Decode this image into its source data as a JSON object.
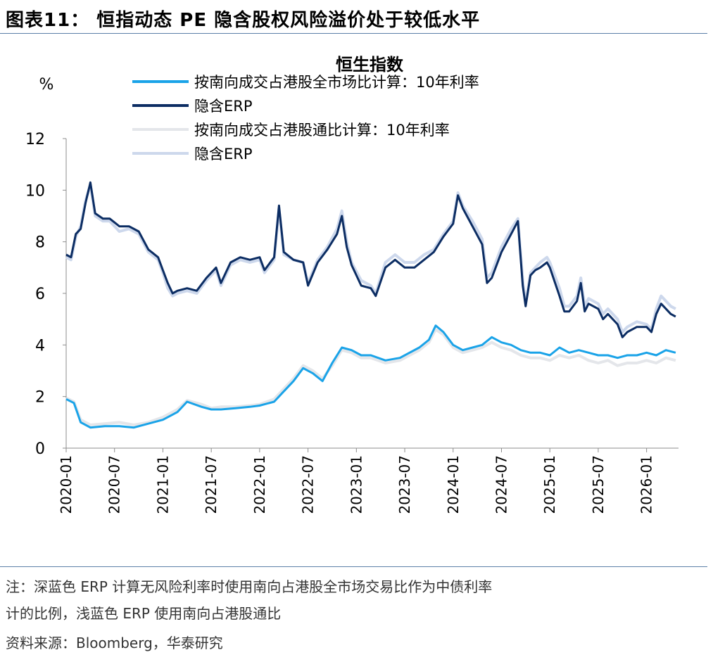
{
  "figure_title": "图表11： 恒指动态 PE 隐含股权风险溢价处于较低水平",
  "notes": {
    "line1": "注：深蓝色 ERP 计算无风险利率时使用南向占港股全市场交易比作为中债利率",
    "line2": "计的比例，浅蓝色 ERP 使用南向占港股通比",
    "source": "资料来源：Bloomberg，华泰研究"
  },
  "colors": {
    "rf_full_market": "#1aa3e8",
    "erp_full_market": "#0c2d63",
    "rf_connect": "#e4e6ea",
    "erp_connect": "#cdd8ec"
  },
  "chart_data": {
    "type": "line",
    "title": "恒生指数",
    "ylabel": "%",
    "xlabel": "",
    "ylim": [
      0,
      12
    ],
    "yticks": [
      "0",
      "2",
      "4",
      "6",
      "8",
      "10",
      "12"
    ],
    "xlim": [
      2020.0,
      2026.33
    ],
    "x_tick_labels": [
      "2020-01",
      "2020-07",
      "2021-01",
      "2021-07",
      "2022-01",
      "2022-07",
      "2023-01",
      "2023-07",
      "2024-01",
      "2024-07",
      "2025-01",
      "2025-07",
      "2026-01"
    ],
    "legend_position": "top-left",
    "series": [
      {
        "name": "按南向成交占港股通比计算：10年利率",
        "style": "light-gray",
        "points": [
          [
            2020.0,
            1.95
          ],
          [
            2020.08,
            1.8
          ],
          [
            2020.15,
            1.1
          ],
          [
            2020.25,
            0.9
          ],
          [
            2020.4,
            0.95
          ],
          [
            2020.55,
            1.0
          ],
          [
            2020.7,
            0.9
          ],
          [
            2020.85,
            1.0
          ],
          [
            2021.0,
            1.2
          ],
          [
            2021.15,
            1.5
          ],
          [
            2021.25,
            1.85
          ],
          [
            2021.4,
            1.7
          ],
          [
            2021.5,
            1.55
          ],
          [
            2021.6,
            1.6
          ],
          [
            2021.75,
            1.6
          ],
          [
            2021.9,
            1.65
          ],
          [
            2022.0,
            1.7
          ],
          [
            2022.15,
            1.9
          ],
          [
            2022.25,
            2.3
          ],
          [
            2022.35,
            2.7
          ],
          [
            2022.45,
            3.2
          ],
          [
            2022.55,
            3.0
          ],
          [
            2022.65,
            2.7
          ],
          [
            2022.75,
            3.2
          ],
          [
            2022.85,
            3.8
          ],
          [
            2022.95,
            3.7
          ],
          [
            2023.05,
            3.5
          ],
          [
            2023.15,
            3.5
          ],
          [
            2023.3,
            3.3
          ],
          [
            2023.45,
            3.4
          ],
          [
            2023.55,
            3.6
          ],
          [
            2023.65,
            3.8
          ],
          [
            2023.75,
            4.1
          ],
          [
            2023.82,
            4.6
          ],
          [
            2023.9,
            4.4
          ],
          [
            2024.0,
            3.9
          ],
          [
            2024.1,
            3.7
          ],
          [
            2024.2,
            3.8
          ],
          [
            2024.3,
            3.9
          ],
          [
            2024.4,
            4.1
          ],
          [
            2024.5,
            3.9
          ],
          [
            2024.6,
            3.8
          ],
          [
            2024.7,
            3.6
          ],
          [
            2024.8,
            3.5
          ],
          [
            2024.9,
            3.5
          ],
          [
            2025.0,
            3.4
          ],
          [
            2025.1,
            3.6
          ],
          [
            2025.2,
            3.5
          ],
          [
            2025.3,
            3.6
          ],
          [
            2025.4,
            3.4
          ],
          [
            2025.5,
            3.3
          ],
          [
            2025.6,
            3.4
          ],
          [
            2025.7,
            3.2
          ],
          [
            2025.8,
            3.3
          ],
          [
            2025.9,
            3.3
          ],
          [
            2026.0,
            3.4
          ],
          [
            2026.1,
            3.3
          ],
          [
            2026.2,
            3.5
          ],
          [
            2026.3,
            3.4
          ]
        ]
      },
      {
        "name": "按南向成交占港股全市场比计算：10年利率",
        "style": "light-blue",
        "points": [
          [
            2020.0,
            1.9
          ],
          [
            2020.08,
            1.75
          ],
          [
            2020.15,
            1.0
          ],
          [
            2020.25,
            0.8
          ],
          [
            2020.4,
            0.85
          ],
          [
            2020.55,
            0.85
          ],
          [
            2020.7,
            0.8
          ],
          [
            2020.85,
            0.95
          ],
          [
            2021.0,
            1.1
          ],
          [
            2021.15,
            1.4
          ],
          [
            2021.25,
            1.8
          ],
          [
            2021.4,
            1.6
          ],
          [
            2021.5,
            1.5
          ],
          [
            2021.6,
            1.5
          ],
          [
            2021.75,
            1.55
          ],
          [
            2021.9,
            1.6
          ],
          [
            2022.0,
            1.65
          ],
          [
            2022.15,
            1.8
          ],
          [
            2022.25,
            2.2
          ],
          [
            2022.35,
            2.6
          ],
          [
            2022.45,
            3.1
          ],
          [
            2022.55,
            2.9
          ],
          [
            2022.65,
            2.6
          ],
          [
            2022.75,
            3.3
          ],
          [
            2022.85,
            3.9
          ],
          [
            2022.95,
            3.8
          ],
          [
            2023.05,
            3.6
          ],
          [
            2023.15,
            3.6
          ],
          [
            2023.3,
            3.4
          ],
          [
            2023.45,
            3.5
          ],
          [
            2023.55,
            3.7
          ],
          [
            2023.65,
            3.9
          ],
          [
            2023.75,
            4.2
          ],
          [
            2023.82,
            4.75
          ],
          [
            2023.9,
            4.5
          ],
          [
            2024.0,
            4.0
          ],
          [
            2024.1,
            3.8
          ],
          [
            2024.2,
            3.9
          ],
          [
            2024.3,
            4.0
          ],
          [
            2024.4,
            4.3
          ],
          [
            2024.5,
            4.1
          ],
          [
            2024.6,
            4.0
          ],
          [
            2024.7,
            3.8
          ],
          [
            2024.8,
            3.7
          ],
          [
            2024.9,
            3.7
          ],
          [
            2025.0,
            3.6
          ],
          [
            2025.1,
            3.9
          ],
          [
            2025.2,
            3.7
          ],
          [
            2025.3,
            3.8
          ],
          [
            2025.4,
            3.7
          ],
          [
            2025.5,
            3.6
          ],
          [
            2025.6,
            3.6
          ],
          [
            2025.7,
            3.5
          ],
          [
            2025.8,
            3.6
          ],
          [
            2025.9,
            3.6
          ],
          [
            2026.0,
            3.7
          ],
          [
            2026.1,
            3.6
          ],
          [
            2026.2,
            3.8
          ],
          [
            2026.3,
            3.7
          ]
        ]
      },
      {
        "name": "隐含ERP",
        "legend_index": 3,
        "style": "pale-blue",
        "points": [
          [
            2020.0,
            7.4
          ],
          [
            2020.05,
            7.3
          ],
          [
            2020.1,
            8.2
          ],
          [
            2020.15,
            8.6
          ],
          [
            2020.2,
            9.6
          ],
          [
            2020.25,
            10.2
          ],
          [
            2020.3,
            9.0
          ],
          [
            2020.38,
            8.8
          ],
          [
            2020.45,
            8.8
          ],
          [
            2020.55,
            8.4
          ],
          [
            2020.65,
            8.5
          ],
          [
            2020.75,
            8.3
          ],
          [
            2020.85,
            7.6
          ],
          [
            2020.95,
            7.3
          ],
          [
            2021.0,
            6.8
          ],
          [
            2021.05,
            6.2
          ],
          [
            2021.1,
            5.9
          ],
          [
            2021.15,
            6.0
          ],
          [
            2021.25,
            6.1
          ],
          [
            2021.35,
            6.0
          ],
          [
            2021.45,
            6.5
          ],
          [
            2021.55,
            6.9
          ],
          [
            2021.6,
            6.3
          ],
          [
            2021.7,
            7.1
          ],
          [
            2021.8,
            7.3
          ],
          [
            2021.9,
            7.2
          ],
          [
            2022.0,
            7.3
          ],
          [
            2022.05,
            6.8
          ],
          [
            2022.15,
            7.3
          ],
          [
            2022.2,
            9.3
          ],
          [
            2022.25,
            7.5
          ],
          [
            2022.35,
            7.3
          ],
          [
            2022.45,
            7.2
          ],
          [
            2022.5,
            6.4
          ],
          [
            2022.6,
            7.3
          ],
          [
            2022.7,
            7.8
          ],
          [
            2022.8,
            8.5
          ],
          [
            2022.85,
            9.2
          ],
          [
            2022.9,
            8.0
          ],
          [
            2022.95,
            7.2
          ],
          [
            2023.05,
            6.5
          ],
          [
            2023.15,
            6.3
          ],
          [
            2023.2,
            6.0
          ],
          [
            2023.3,
            7.2
          ],
          [
            2023.4,
            7.5
          ],
          [
            2023.5,
            7.2
          ],
          [
            2023.6,
            7.2
          ],
          [
            2023.7,
            7.5
          ],
          [
            2023.8,
            7.7
          ],
          [
            2023.9,
            8.3
          ],
          [
            2024.0,
            8.8
          ],
          [
            2024.05,
            9.9
          ],
          [
            2024.1,
            9.4
          ],
          [
            2024.2,
            8.8
          ],
          [
            2024.3,
            8.1
          ],
          [
            2024.35,
            6.6
          ],
          [
            2024.4,
            6.8
          ],
          [
            2024.5,
            7.8
          ],
          [
            2024.6,
            8.5
          ],
          [
            2024.67,
            8.9
          ],
          [
            2024.72,
            6.5
          ],
          [
            2024.75,
            5.6
          ],
          [
            2024.8,
            6.8
          ],
          [
            2024.85,
            7.0
          ],
          [
            2024.9,
            7.2
          ],
          [
            2024.97,
            7.4
          ],
          [
            2025.0,
            7.2
          ],
          [
            2025.1,
            6.2
          ],
          [
            2025.15,
            5.5
          ],
          [
            2025.2,
            5.5
          ],
          [
            2025.28,
            5.9
          ],
          [
            2025.32,
            6.6
          ],
          [
            2025.36,
            5.5
          ],
          [
            2025.4,
            5.8
          ],
          [
            2025.5,
            5.6
          ],
          [
            2025.55,
            5.2
          ],
          [
            2025.6,
            5.4
          ],
          [
            2025.7,
            5.0
          ],
          [
            2025.75,
            4.5
          ],
          [
            2025.8,
            4.7
          ],
          [
            2025.9,
            4.9
          ],
          [
            2026.0,
            4.8
          ],
          [
            2026.05,
            4.6
          ],
          [
            2026.1,
            5.4
          ],
          [
            2026.15,
            5.9
          ],
          [
            2026.25,
            5.5
          ],
          [
            2026.3,
            5.4
          ]
        ]
      },
      {
        "name": "隐含ERP",
        "legend_index": 1,
        "style": "navy",
        "points": [
          [
            2020.0,
            7.5
          ],
          [
            2020.05,
            7.4
          ],
          [
            2020.1,
            8.3
          ],
          [
            2020.15,
            8.5
          ],
          [
            2020.2,
            9.5
          ],
          [
            2020.25,
            10.3
          ],
          [
            2020.3,
            9.1
          ],
          [
            2020.38,
            8.9
          ],
          [
            2020.45,
            8.9
          ],
          [
            2020.55,
            8.6
          ],
          [
            2020.65,
            8.6
          ],
          [
            2020.75,
            8.4
          ],
          [
            2020.85,
            7.7
          ],
          [
            2020.95,
            7.4
          ],
          [
            2021.0,
            6.9
          ],
          [
            2021.05,
            6.4
          ],
          [
            2021.1,
            6.0
          ],
          [
            2021.15,
            6.1
          ],
          [
            2021.25,
            6.2
          ],
          [
            2021.35,
            6.1
          ],
          [
            2021.45,
            6.6
          ],
          [
            2021.55,
            7.0
          ],
          [
            2021.6,
            6.4
          ],
          [
            2021.7,
            7.2
          ],
          [
            2021.8,
            7.4
          ],
          [
            2021.9,
            7.3
          ],
          [
            2022.0,
            7.4
          ],
          [
            2022.05,
            6.9
          ],
          [
            2022.15,
            7.4
          ],
          [
            2022.2,
            9.4
          ],
          [
            2022.25,
            7.6
          ],
          [
            2022.35,
            7.3
          ],
          [
            2022.45,
            7.2
          ],
          [
            2022.5,
            6.3
          ],
          [
            2022.6,
            7.2
          ],
          [
            2022.7,
            7.7
          ],
          [
            2022.8,
            8.3
          ],
          [
            2022.85,
            9.0
          ],
          [
            2022.9,
            7.8
          ],
          [
            2022.95,
            7.1
          ],
          [
            2023.05,
            6.3
          ],
          [
            2023.15,
            6.2
          ],
          [
            2023.2,
            5.9
          ],
          [
            2023.3,
            7.0
          ],
          [
            2023.4,
            7.3
          ],
          [
            2023.5,
            7.0
          ],
          [
            2023.6,
            7.0
          ],
          [
            2023.7,
            7.3
          ],
          [
            2023.8,
            7.6
          ],
          [
            2023.9,
            8.2
          ],
          [
            2024.0,
            8.7
          ],
          [
            2024.05,
            9.8
          ],
          [
            2024.1,
            9.3
          ],
          [
            2024.2,
            8.6
          ],
          [
            2024.3,
            7.9
          ],
          [
            2024.35,
            6.4
          ],
          [
            2024.4,
            6.6
          ],
          [
            2024.5,
            7.6
          ],
          [
            2024.6,
            8.3
          ],
          [
            2024.67,
            8.8
          ],
          [
            2024.72,
            6.3
          ],
          [
            2024.75,
            5.5
          ],
          [
            2024.8,
            6.7
          ],
          [
            2024.85,
            6.9
          ],
          [
            2024.9,
            7.0
          ],
          [
            2024.97,
            7.2
          ],
          [
            2025.0,
            7.0
          ],
          [
            2025.1,
            5.9
          ],
          [
            2025.15,
            5.3
          ],
          [
            2025.2,
            5.3
          ],
          [
            2025.28,
            5.7
          ],
          [
            2025.32,
            6.4
          ],
          [
            2025.36,
            5.3
          ],
          [
            2025.4,
            5.6
          ],
          [
            2025.5,
            5.4
          ],
          [
            2025.55,
            5.0
          ],
          [
            2025.6,
            5.2
          ],
          [
            2025.7,
            4.8
          ],
          [
            2025.75,
            4.3
          ],
          [
            2025.8,
            4.5
          ],
          [
            2025.9,
            4.7
          ],
          [
            2026.0,
            4.7
          ],
          [
            2026.05,
            4.5
          ],
          [
            2026.1,
            5.2
          ],
          [
            2026.15,
            5.6
          ],
          [
            2026.25,
            5.2
          ],
          [
            2026.3,
            5.1
          ]
        ]
      }
    ],
    "legend": [
      {
        "label": "按南向成交占港股全市场比计算：10年利率",
        "style": "light-blue"
      },
      {
        "label": "隐含ERP",
        "style": "navy"
      },
      {
        "label": "按南向成交占港股通比计算：10年利率",
        "style": "light-gray"
      },
      {
        "label": "隐含ERP",
        "style": "pale-blue"
      }
    ]
  }
}
